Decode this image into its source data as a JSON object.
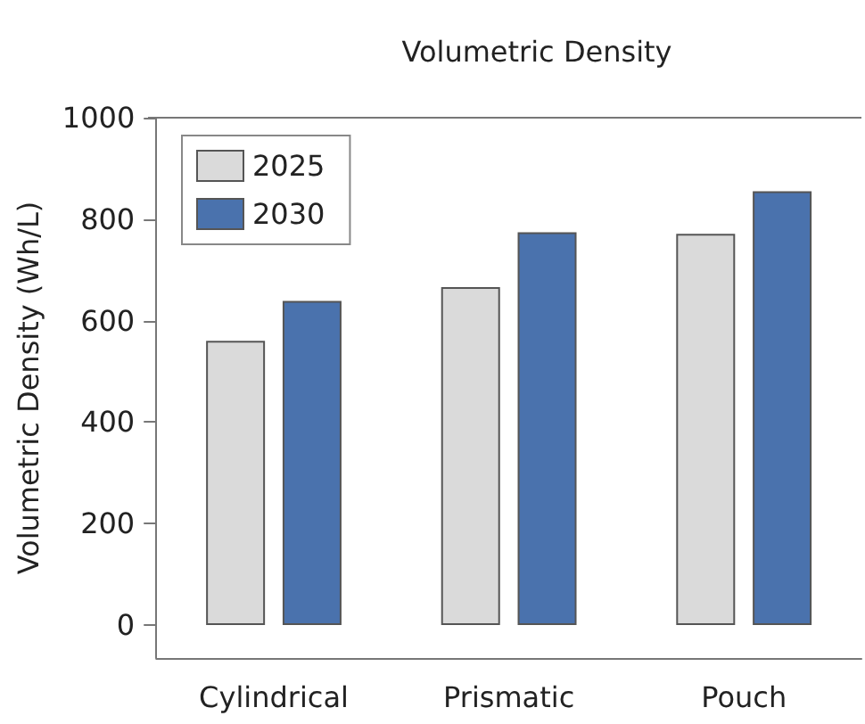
{
  "chart_data": {
    "type": "bar",
    "title": "Volumetric Density",
    "ylabel": "Volumetric Density (Wh/L)",
    "categories": [
      "Cylindrical",
      "Prismatic",
      "Pouch"
    ],
    "series": [
      {
        "name": "2025",
        "color": "#dadada",
        "values": [
          560,
          666,
          771
        ]
      },
      {
        "name": "2030",
        "color": "#4a72ad",
        "values": [
          639,
          774,
          855
        ]
      }
    ],
    "ylim": [
      -65,
      1000
    ],
    "yticks": [
      0,
      200,
      400,
      600,
      800,
      1000
    ],
    "grid": false,
    "legend": "top left"
  }
}
